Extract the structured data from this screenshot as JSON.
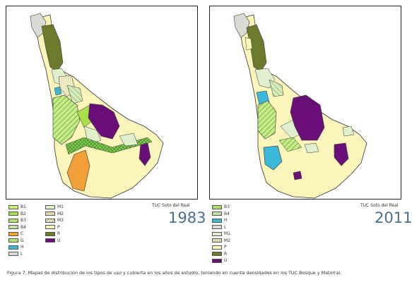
{
  "maps": [
    {
      "title": "TUC Soto del Real",
      "year": "1983",
      "legend_col1": [
        {
          "code": "B1",
          "color": "#c9f27a",
          "pattern": "solid"
        },
        {
          "code": "B2",
          "color": "#a8e04b",
          "pattern": "solid"
        },
        {
          "code": "B3",
          "color": "#7dc435",
          "pattern": "hatch"
        },
        {
          "code": "B4",
          "color": "#9ccf52",
          "pattern": "hatch2"
        },
        {
          "code": "C",
          "color": "#f2a13a",
          "pattern": "solid"
        },
        {
          "code": "G",
          "color": "#5aa832",
          "pattern": "hatch"
        },
        {
          "code": "H",
          "color": "#3ab7d9",
          "pattern": "solid"
        },
        {
          "code": "L",
          "color": "#d9dcd2",
          "pattern": "solid"
        }
      ],
      "legend_col2": [
        {
          "code": "M1",
          "color": "#e1f0cc",
          "pattern": "solid"
        },
        {
          "code": "M2",
          "color": "#f4f0c6",
          "pattern": "m2"
        },
        {
          "code": "M3",
          "color": "#f4f0c6",
          "pattern": "m3"
        },
        {
          "code": "P",
          "color": "#fbf5bb",
          "pattern": "solid"
        },
        {
          "code": "R",
          "color": "#6b7a2c",
          "pattern": "solid"
        },
        {
          "code": "U",
          "color": "#6a0f78",
          "pattern": "solid"
        }
      ]
    },
    {
      "title": "TUC Soto del Real",
      "year": "2011",
      "legend_col1": [
        {
          "code": "B3",
          "color": "#7dc435",
          "pattern": "hatch"
        },
        {
          "code": "B4",
          "color": "#9ccf52",
          "pattern": "hatch2"
        },
        {
          "code": "H",
          "color": "#3ab7d9",
          "pattern": "solid"
        },
        {
          "code": "L",
          "color": "#d9dcd2",
          "pattern": "solid"
        },
        {
          "code": "M1",
          "color": "#e1f0cc",
          "pattern": "solid"
        },
        {
          "code": "M2",
          "color": "#f4f0c6",
          "pattern": "m2"
        },
        {
          "code": "P",
          "color": "#fbf5bb",
          "pattern": "solid"
        },
        {
          "code": "R",
          "color": "#6b7a2c",
          "pattern": "solid"
        },
        {
          "code": "U",
          "color": "#6a0f78",
          "pattern": "solid"
        }
      ]
    }
  ],
  "caption": "Figura 7. Mapas de distribución de los tipos de uso y cubierta en los años de estudio, teniendo en cuenta densidades en los TUC Bosque y Matorral."
}
